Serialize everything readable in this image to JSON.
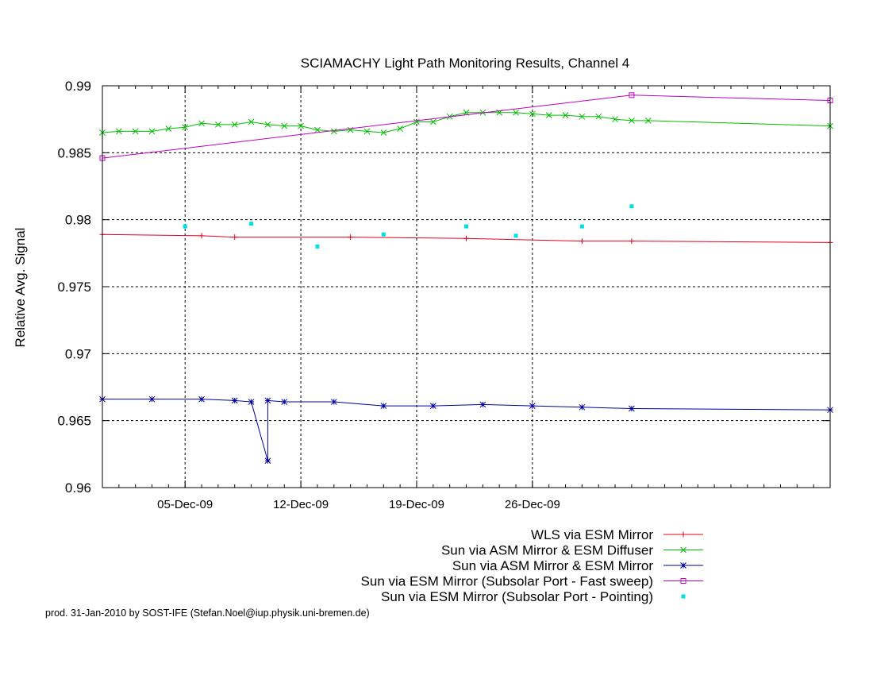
{
  "chart_data": {
    "type": "line",
    "title": "SCIAMACHY Light Path Monitoring Results, Channel 4",
    "ylabel": "Relative Avg. Signal",
    "xlabel": "",
    "xlim": [
      "2009-11-30",
      "2010-01-13"
    ],
    "ylim": [
      0.96,
      0.99
    ],
    "y_ticks": [
      "0.96",
      "0.965",
      "0.97",
      "0.975",
      "0.98",
      "0.985",
      "0.99"
    ],
    "x_ticks": [
      {
        "date": "2009-12-05",
        "label": "05-Dec-09"
      },
      {
        "date": "2009-12-12",
        "label": "12-Dec-09"
      },
      {
        "date": "2009-12-19",
        "label": "19-Dec-09"
      },
      {
        "date": "2009-12-26",
        "label": "26-Dec-09"
      }
    ],
    "grid": true,
    "legend_position": "below plot, right-aligned",
    "series": [
      {
        "name": "WLS via ESM Mirror",
        "color": "#e8001c",
        "marker": "plus",
        "x": [
          "2009-11-30",
          "2009-12-06",
          "2009-12-08",
          "2009-12-15",
          "2009-12-22",
          "2009-12-29",
          "2010-01-01",
          "2010-01-13"
        ],
        "y": [
          0.9789,
          0.9788,
          0.9787,
          0.9787,
          0.9786,
          0.9784,
          0.9784,
          0.9783
        ]
      },
      {
        "name": "Sun via ASM Mirror & ESM Diffuser",
        "color": "#00c000",
        "marker": "cross",
        "x": [
          "2009-11-30",
          "2009-12-01",
          "2009-12-02",
          "2009-12-03",
          "2009-12-04",
          "2009-12-05",
          "2009-12-06",
          "2009-12-07",
          "2009-12-08",
          "2009-12-09",
          "2009-12-10",
          "2009-12-11",
          "2009-12-12",
          "2009-12-13",
          "2009-12-14",
          "2009-12-15",
          "2009-12-16",
          "2009-12-17",
          "2009-12-18",
          "2009-12-19",
          "2009-12-20",
          "2009-12-21",
          "2009-12-22",
          "2009-12-23",
          "2009-12-24",
          "2009-12-25",
          "2009-12-26",
          "2009-12-27",
          "2009-12-28",
          "2009-12-29",
          "2009-12-30",
          "2009-12-31",
          "2010-01-01",
          "2010-01-02",
          "2010-01-13"
        ],
        "y": [
          0.9865,
          0.9866,
          0.9866,
          0.9866,
          0.9868,
          0.9869,
          0.9872,
          0.9871,
          0.9871,
          0.9873,
          0.9871,
          0.987,
          0.987,
          0.9867,
          0.9866,
          0.9867,
          0.9866,
          0.9865,
          0.9868,
          0.9873,
          0.9873,
          0.9877,
          0.988,
          0.988,
          0.988,
          0.988,
          0.9879,
          0.9878,
          0.9878,
          0.9877,
          0.9877,
          0.9875,
          0.9874,
          0.9874,
          0.987
        ]
      },
      {
        "name": "Sun via ASM Mirror & ESM Mirror",
        "color": "#0000a0",
        "marker": "star",
        "x": [
          "2009-11-30",
          "2009-12-03",
          "2009-12-06",
          "2009-12-08",
          "2009-12-09",
          "2009-12-10",
          "2009-12-10",
          "2009-12-11",
          "2009-12-14",
          "2009-12-17",
          "2009-12-20",
          "2009-12-23",
          "2009-12-26",
          "2009-12-29",
          "2010-01-01",
          "2010-01-13"
        ],
        "y": [
          0.9666,
          0.9666,
          0.9666,
          0.9665,
          0.9664,
          0.962,
          0.9665,
          0.9664,
          0.9664,
          0.9661,
          0.9661,
          0.9662,
          0.9661,
          0.966,
          0.9659,
          0.9658
        ]
      },
      {
        "name": "Sun via ESM Mirror (Subsolar Port - Fast sweep)",
        "color": "#c000c0",
        "marker": "square",
        "x": [
          "2009-11-30",
          "2010-01-01",
          "2010-01-13"
        ],
        "y": [
          0.9846,
          0.9893,
          0.9889
        ]
      },
      {
        "name": "Sun via ESM Mirror (Subsolar Port - Pointing)",
        "color": "#00e0e0",
        "marker": "dot",
        "x": [
          "2009-12-05",
          "2009-12-09",
          "2009-12-13",
          "2009-12-17",
          "2009-12-22",
          "2009-12-25",
          "2009-12-29",
          "2010-01-01"
        ],
        "y": [
          0.9795,
          0.9797,
          0.978,
          0.9789,
          0.9795,
          0.9788,
          0.9795,
          0.981
        ]
      }
    ]
  },
  "footer": "prod. 31-Jan-2010 by SOST-IFE (Stefan.Noel@iup.physik.uni-bremen.de)"
}
